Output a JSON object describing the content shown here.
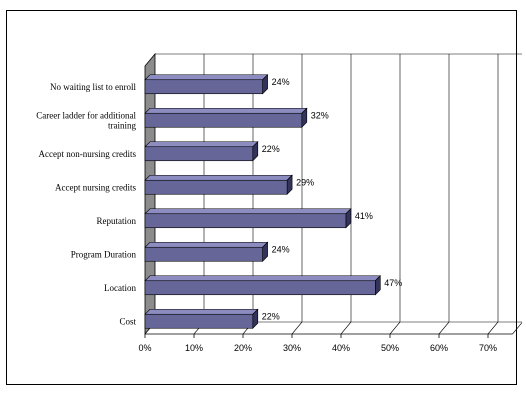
{
  "chart_data": {
    "type": "bar",
    "orientation": "horizontal",
    "categories": [
      "No waiting list to enroll",
      "Career ladder for additional training",
      "Accept non-nursing credits",
      "Accept nursing credits",
      "Reputation",
      "Program Duration",
      "Location",
      "Cost"
    ],
    "category_label_lines": [
      [
        "No waiting list to enroll"
      ],
      [
        "Career ladder for additional",
        "training"
      ],
      [
        "Accept non-nursing credits"
      ],
      [
        "Accept nursing credits"
      ],
      [
        "Reputation"
      ],
      [
        "Program Duration"
      ],
      [
        "Location"
      ],
      [
        "Cost"
      ]
    ],
    "values": [
      24,
      32,
      22,
      29,
      41,
      24,
      47,
      22
    ],
    "value_labels": [
      "24%",
      "32%",
      "22%",
      "29%",
      "41%",
      "24%",
      "47%",
      "22%"
    ],
    "x_ticks": [
      "0%",
      "10%",
      "20%",
      "30%",
      "40%",
      "50%",
      "60%",
      "70%"
    ],
    "xlim": [
      0,
      75
    ],
    "title": "",
    "xlabel": "",
    "ylabel": "",
    "grid": true,
    "legend": "none",
    "colors": {
      "bar_front": "#666699",
      "bar_top": "#8c8cc0",
      "bar_side": "#33335c",
      "floor_wall": "#8c8c8c",
      "grid": "#000000"
    }
  }
}
